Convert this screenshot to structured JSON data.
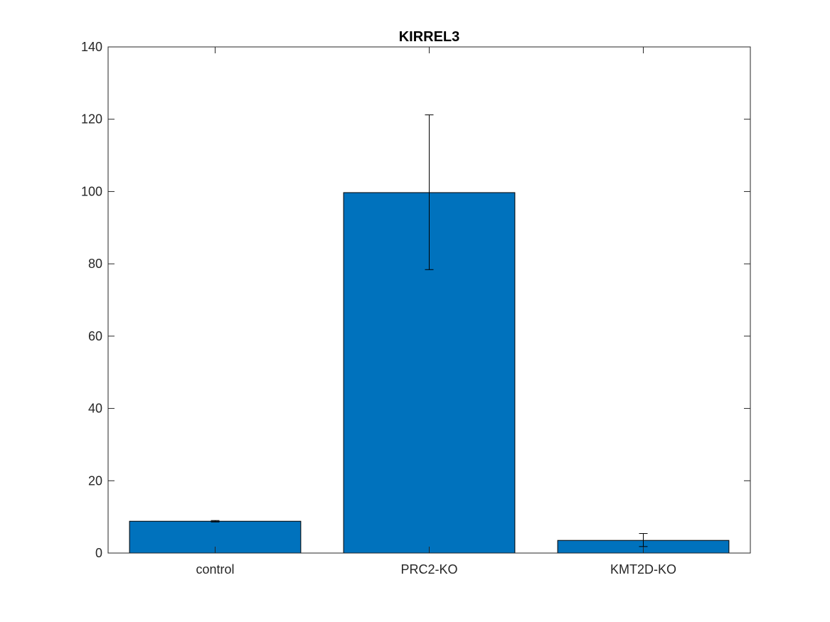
{
  "chart_data": {
    "type": "bar",
    "title": "KIRREL3",
    "xlabel": "",
    "ylabel": "",
    "categories": [
      "control",
      "PRC2-KO",
      "KMT2D-KO"
    ],
    "values": [
      8.8,
      99.7,
      3.5
    ],
    "error_bars": [
      {
        "low": 8.6,
        "high": 9.0
      },
      {
        "low": 78.4,
        "high": 121.2
      },
      {
        "low": 1.8,
        "high": 5.4
      }
    ],
    "ylim": [
      0,
      140
    ],
    "yticks": [
      0,
      20,
      40,
      60,
      80,
      100,
      120,
      140
    ],
    "bar_color": "#0072BD",
    "grid": false,
    "legend": "none"
  }
}
